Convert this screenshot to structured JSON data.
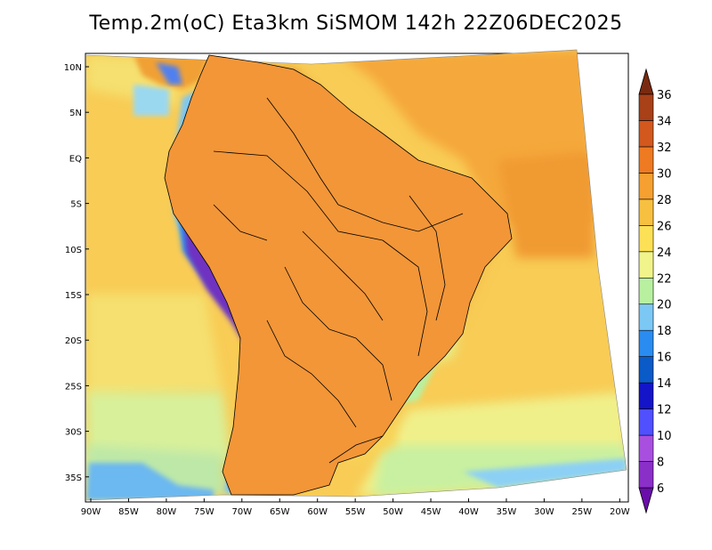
{
  "title": "Temp.2m(oC) Eta3km SiSMOM 142h 22Z06DEC2025",
  "lat_labels": [
    "10N",
    "5N",
    "EQ",
    "5S",
    "10S",
    "15S",
    "20S",
    "25S",
    "30S",
    "35S"
  ],
  "lon_labels": [
    "90W",
    "85W",
    "80W",
    "75W",
    "70W",
    "65W",
    "60W",
    "55W",
    "50W",
    "45W",
    "40W",
    "35W",
    "30W",
    "25W",
    "20W"
  ],
  "colorbar": {
    "labels": [
      "6",
      "8",
      "10",
      "12",
      "14",
      "16",
      "18",
      "20",
      "22",
      "24",
      "26",
      "28",
      "30",
      "32",
      "34",
      "36"
    ],
    "colors": [
      "#6a0dab",
      "#8b2fc9",
      "#a94fe0",
      "#5050ff",
      "#1414c8",
      "#0a5ac8",
      "#2a8cf0",
      "#7cc8f5",
      "#b8f0a0",
      "#f0f48a",
      "#fce055",
      "#f8c040",
      "#f5a030",
      "#ee7a22",
      "#d2581e",
      "#a84018",
      "#7a2a10"
    ]
  },
  "legend_colors": {
    "ocean_base": "#f5d060",
    "land_hot": "#e07828",
    "andes_cold": "#7030c0"
  }
}
